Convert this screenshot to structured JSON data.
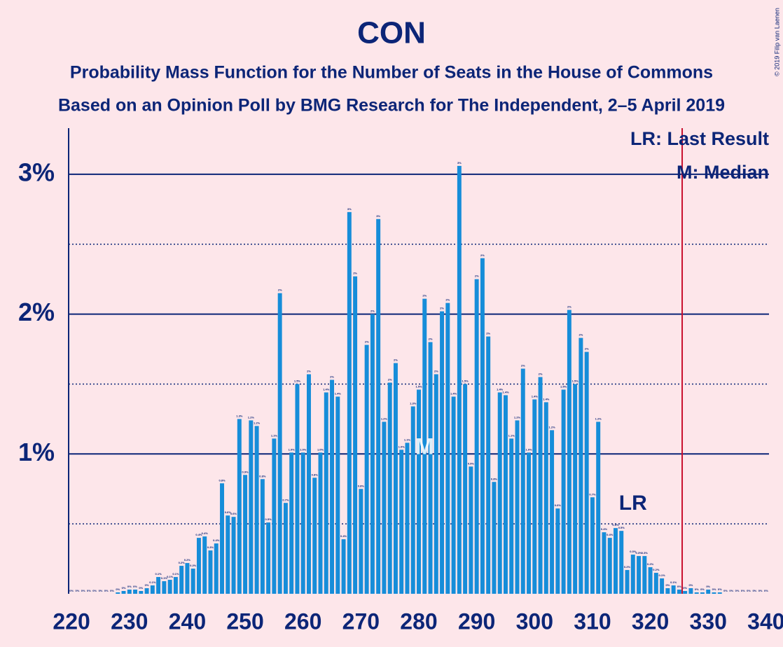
{
  "chart_data": {
    "type": "bar",
    "title": "CON",
    "subtitles": [
      "Probability Mass Function for the Number of Seats in the House of Commons",
      "Based on an Opinion Poll by BMG Research for The Independent, 2–5 April 2019"
    ],
    "copyright": "© 2019 Filip van Laenen",
    "legend_notes": [
      "LR: Last Result",
      "M: Median"
    ],
    "color": "#168dd9",
    "x": [
      220,
      221,
      222,
      223,
      224,
      225,
      226,
      227,
      228,
      229,
      230,
      231,
      232,
      233,
      234,
      235,
      236,
      237,
      238,
      239,
      240,
      241,
      242,
      243,
      244,
      245,
      246,
      247,
      248,
      249,
      250,
      251,
      252,
      253,
      254,
      255,
      256,
      257,
      258,
      259,
      260,
      261,
      262,
      263,
      264,
      265,
      266,
      267,
      268,
      269,
      270,
      271,
      272,
      273,
      274,
      275,
      276,
      277,
      278,
      279,
      280,
      281,
      282,
      283,
      284,
      285,
      286,
      287,
      288,
      289,
      290,
      291,
      292,
      293,
      294,
      295,
      296,
      297,
      298,
      299,
      300,
      301,
      302,
      303,
      304,
      305,
      306,
      307,
      308,
      309,
      310,
      311,
      312,
      313,
      314,
      315,
      316,
      317,
      318,
      319,
      320,
      321,
      322,
      323,
      324,
      325,
      326,
      327,
      328,
      329,
      330,
      331,
      332,
      333,
      334,
      335,
      336,
      337,
      338,
      339,
      340
    ],
    "values": [
      0,
      0,
      0,
      0,
      0,
      0,
      0,
      0,
      0.01,
      0.02,
      0.03,
      0.03,
      0.02,
      0.04,
      0.06,
      0.12,
      0.09,
      0.1,
      0.12,
      0.2,
      0.22,
      0.18,
      0.4,
      0.41,
      0.31,
      0.36,
      0.79,
      0.56,
      0.55,
      1.25,
      0.85,
      1.24,
      1.2,
      0.82,
      0.51,
      1.11,
      2.15,
      0.65,
      1.01,
      1.5,
      1.01,
      1.57,
      0.83,
      1.01,
      1.44,
      1.53,
      1.41,
      0.39,
      2.73,
      2.27,
      0.75,
      1.78,
      2.0,
      2.68,
      1.23,
      1.51,
      1.65,
      1.03,
      1.08,
      1.34,
      1.46,
      2.11,
      1.8,
      1.57,
      2.02,
      2.08,
      1.41,
      3.06,
      1.5,
      0.91,
      2.25,
      2.4,
      1.84,
      0.8,
      1.44,
      1.42,
      1.11,
      1.24,
      1.61,
      1.01,
      1.39,
      1.55,
      1.37,
      1.17,
      0.61,
      1.46,
      2.03,
      1.5,
      1.83,
      1.73,
      0.69,
      1.23,
      0.44,
      0.4,
      0.47,
      0.45,
      0.17,
      0.28,
      0.27,
      0.27,
      0.19,
      0.15,
      0.11,
      0.04,
      0.06,
      0.03,
      0.02,
      0.04,
      0.01,
      0.01,
      0.03,
      0.01,
      0.01,
      0,
      0,
      0,
      0,
      0,
      0,
      0,
      0
    ],
    "value_labels": [
      "0%",
      "0%",
      "0%",
      "0%",
      "0%",
      "0%",
      "0%",
      "0%",
      "0%",
      "0%",
      "0%",
      "0%",
      "0%",
      "0%",
      "0.1%",
      "0.1%",
      "0.1%",
      "0.1%",
      "0.1%",
      "0.2%",
      "0.2%",
      "0.2%",
      "0.4%",
      "0.4%",
      "0.3%",
      "0.4%",
      "0.8%",
      "0.6%",
      "0.6%",
      "1.3%",
      "0.9%",
      "1.2%",
      "1.2%",
      "0.8%",
      "0.5%",
      "1.1%",
      "2%",
      "0.7%",
      "1.0%",
      "1.5%",
      "1.0%",
      "2%",
      "0.8%",
      "1.0%",
      "1.4%",
      "2%",
      "1.4%",
      "0.4%",
      "3%",
      "2%",
      "0.8%",
      "2%",
      "2%",
      "3%",
      "1.2%",
      "2%",
      "2%",
      "1.0%",
      "1.1%",
      "1.3%",
      "1.5%",
      "2%",
      "2%",
      "2%",
      "2%",
      "2%",
      "1.4%",
      "3%",
      "1.5%",
      "0.9%",
      "2%",
      "2%",
      "2%",
      "0.8%",
      "1.4%",
      "1.4%",
      "1.1%",
      "1.2%",
      "2%",
      "1.0%",
      "1.4%",
      "2%",
      "1.4%",
      "1.2%",
      "0.6%",
      "1.5%",
      "2%",
      "1.5%",
      "2%",
      "2%",
      "0.7%",
      "1.2%",
      "0.4%",
      "0.4%",
      "0.5%",
      "0.5%",
      "0.2%",
      "0.3%",
      "0.3%",
      "0.3%",
      "0.2%",
      "0.2%",
      "0.1%",
      "0%",
      "0.1%",
      "0%",
      "0%",
      "0%",
      "0%",
      "0%",
      "0%",
      "0%",
      "0%",
      "0%",
      "0%",
      "0%",
      "0%",
      "0%",
      "0%",
      "0%",
      "0%"
    ],
    "xlim": [
      219.5,
      340.5
    ],
    "xticks": [
      220,
      230,
      240,
      250,
      260,
      270,
      280,
      290,
      300,
      310,
      320,
      330,
      340
    ],
    "ylim": [
      0,
      3.33
    ],
    "yticks": [
      {
        "value": 1,
        "label": "1%"
      },
      {
        "value": 2,
        "label": "2%"
      },
      {
        "value": 3,
        "label": "3%"
      }
    ],
    "minor_yticks": [
      0.5,
      1.5,
      2.5
    ],
    "grid": true,
    "median": {
      "label": "M",
      "x": 281
    },
    "last_result": {
      "label": "LR",
      "x": 317
    },
    "majority_line": {
      "x": 325.5,
      "color": "#c8102e"
    }
  }
}
